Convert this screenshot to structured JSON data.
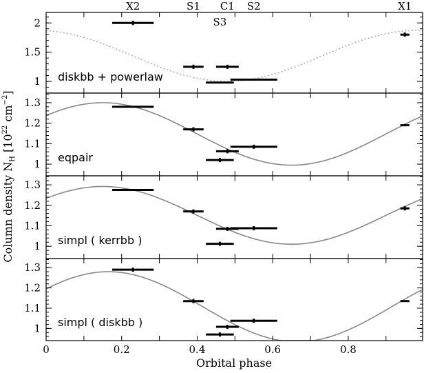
{
  "chart_data": {
    "type": "scatter",
    "xlabel": "Orbital phase",
    "ylabel": "Column density  N",
    "ylabel_sub": "H",
    "ylabel_unit_pre": " [10",
    "ylabel_unit_exp": "22",
    "ylabel_unit_mid": " cm",
    "ylabel_unit_exp2": "−2",
    "ylabel_unit_post": "]",
    "xlim": [
      0,
      0.997
    ],
    "xticks": [
      0,
      0.2,
      0.4,
      0.6,
      0.8
    ],
    "xtick_labels": [
      "0",
      "0.2",
      "0.4",
      "0.6",
      "0.8"
    ],
    "top_labels": [
      {
        "text": "X2",
        "x": 0.23
      },
      {
        "text": "S1",
        "x": 0.39
      },
      {
        "text": "C1",
        "x": 0.48
      },
      {
        "text": "S2",
        "x": 0.55
      },
      {
        "text": "X1",
        "x": 0.95
      }
    ],
    "inner_label": {
      "text": "S3",
      "x": 0.46
    },
    "panels": [
      {
        "label": "diskbb + powerlaw",
        "ylim": [
          0.8,
          2.18
        ],
        "yticks": [
          1,
          1.5,
          2
        ],
        "ytick_labels": [
          "1",
          "1.5",
          "2"
        ],
        "minor_step": 0.1,
        "model": {
          "style": "dotted",
          "mean": 1.435,
          "amp": 0.435,
          "peak_phase": 0.98
        },
        "points": [
          {
            "name": "X2",
            "x": 0.23,
            "xerr": 0.055,
            "y": 2.0,
            "yerr": 0.19
          },
          {
            "name": "S1",
            "x": 0.39,
            "xerr": 0.027,
            "y": 1.25,
            "yerr": 0.35
          },
          {
            "name": "C1",
            "x": 0.48,
            "xerr": 0.03,
            "y": 1.25,
            "yerr": 0.05
          },
          {
            "name": "S3",
            "x": 0.46,
            "xerr": 0.037,
            "y": 0.98,
            "yerr": 0.015
          },
          {
            "name": "S2",
            "x": 0.55,
            "xerr": 0.062,
            "y": 1.03,
            "yerr": 0.01
          },
          {
            "name": "X1",
            "x": 0.95,
            "xerr": 0.012,
            "y": 1.8,
            "yerr": 0.04
          }
        ]
      },
      {
        "label": "eqpair",
        "ylim": [
          0.943,
          1.347
        ],
        "yticks": [
          1,
          1.1,
          1.2,
          1.3
        ],
        "ytick_labels": [
          "1",
          "1.1",
          "1.2",
          "1.3"
        ],
        "minor_step": 0.02,
        "model": {
          "style": "solid",
          "mean": 1.1475,
          "amp": 0.1525,
          "peak_phase": 0.15
        },
        "points": [
          {
            "name": "X2",
            "x": 0.23,
            "xerr": 0.055,
            "y": 1.28,
            "yerr": 0.004
          },
          {
            "name": "S1",
            "x": 0.39,
            "xerr": 0.027,
            "y": 1.17,
            "yerr": 0.15
          },
          {
            "name": "C1",
            "x": 0.48,
            "xerr": 0.03,
            "y": 1.063,
            "yerr": 0.012
          },
          {
            "name": "S3",
            "x": 0.46,
            "xerr": 0.037,
            "y": 1.02,
            "yerr": 0.025
          },
          {
            "name": "S2",
            "x": 0.55,
            "xerr": 0.062,
            "y": 1.085,
            "yerr": 0.015
          },
          {
            "name": "X1",
            "x": 0.95,
            "xerr": 0.012,
            "y": 1.19,
            "yerr": 0.005
          }
        ]
      },
      {
        "label": "simpl ( kerrbb )",
        "ylim": [
          0.94,
          1.344
        ],
        "yticks": [
          1,
          1.1,
          1.2,
          1.3
        ],
        "ytick_labels": [
          "1",
          "1.1",
          "1.2",
          "1.3"
        ],
        "minor_step": 0.02,
        "model": {
          "style": "solid",
          "mean": 1.151,
          "amp": 0.141,
          "peak_phase": 0.15
        },
        "points": [
          {
            "name": "X2",
            "x": 0.23,
            "xerr": 0.055,
            "y": 1.275,
            "yerr": 0.004
          },
          {
            "name": "S1",
            "x": 0.39,
            "xerr": 0.027,
            "y": 1.17,
            "yerr": 0.11
          },
          {
            "name": "C1",
            "x": 0.48,
            "xerr": 0.03,
            "y": 1.085,
            "yerr": 0.015
          },
          {
            "name": "S3",
            "x": 0.46,
            "xerr": 0.037,
            "y": 1.012,
            "yerr": 0.02
          },
          {
            "name": "S2",
            "x": 0.55,
            "xerr": 0.062,
            "y": 1.088,
            "yerr": 0.015
          },
          {
            "name": "X1",
            "x": 0.95,
            "xerr": 0.012,
            "y": 1.185,
            "yerr": 0.01
          }
        ]
      },
      {
        "label": "simpl ( diskbb )",
        "ylim": [
          0.94,
          1.345
        ],
        "yticks": [
          1,
          1.1,
          1.2,
          1.3
        ],
        "ytick_labels": [
          "1",
          "1.1",
          "1.2",
          "1.3"
        ],
        "minor_step": 0.02,
        "model": {
          "style": "solid",
          "mean": 1.107,
          "amp": 0.173,
          "peak_phase": 0.165
        },
        "points": [
          {
            "name": "X2",
            "x": 0.23,
            "xerr": 0.055,
            "y": 1.29,
            "yerr": 0.01
          },
          {
            "name": "S1",
            "x": 0.39,
            "xerr": 0.027,
            "y": 1.135,
            "yerr": 0.155
          },
          {
            "name": "C1",
            "x": 0.48,
            "xerr": 0.03,
            "y": 1.008,
            "yerr": 0.015
          },
          {
            "name": "S3",
            "x": 0.46,
            "xerr": 0.037,
            "y": 0.97,
            "yerr": 0.02
          },
          {
            "name": "S2",
            "x": 0.55,
            "xerr": 0.062,
            "y": 1.038,
            "yerr": 0.02
          },
          {
            "name": "X1",
            "x": 0.95,
            "xerr": 0.012,
            "y": 1.135,
            "yerr": 0.004
          }
        ]
      }
    ]
  }
}
